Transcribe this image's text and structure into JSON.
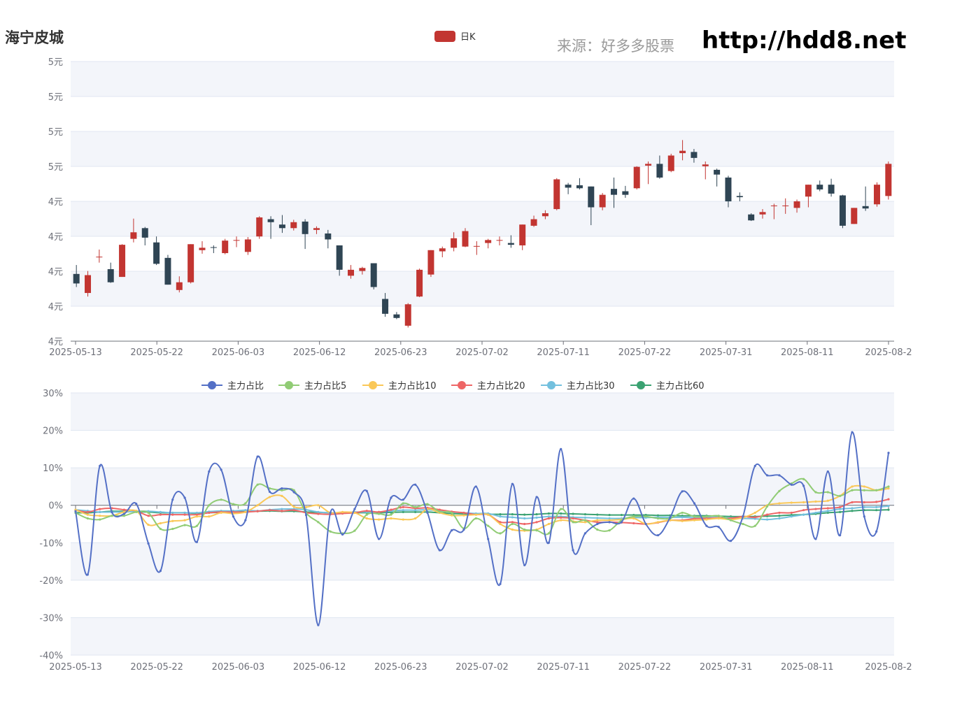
{
  "title": "海宁皮城",
  "source_label": "来源：好多多股票",
  "site_url": "http://hdd8.net",
  "colors": {
    "up": "#c23531",
    "down": "#2f4554",
    "grid_band": "#f3f5fa",
    "series": [
      "#5470c6",
      "#91cc75",
      "#fac858",
      "#ee6666",
      "#73c0de",
      "#3ba272"
    ]
  },
  "chart_data": [
    {
      "type": "candlestick",
      "legend": [
        "日K"
      ],
      "y_tick_labels": [
        "4元",
        "4元",
        "4元",
        "4元",
        "4元",
        "5元",
        "5元",
        "5元",
        "5元"
      ],
      "x_tick_labels": [
        "2025-05-13",
        "2025-05-22",
        "2025-06-03",
        "2025-06-12",
        "2025-06-23",
        "2025-07-02",
        "2025-07-11",
        "2025-07-22",
        "2025-07-31",
        "2025-08-11",
        "2025-08-2"
      ],
      "ylim": [
        4.1,
        4.57
      ],
      "grid": true,
      "candles": [
        [
          4.213,
          4.197,
          4.228,
          4.191
        ],
        [
          4.181,
          4.211,
          4.218,
          4.175
        ],
        [
          4.241,
          4.242,
          4.254,
          4.232
        ],
        [
          4.221,
          4.199,
          4.232,
          4.198
        ],
        [
          4.208,
          4.262,
          4.263,
          4.208
        ],
        [
          4.272,
          4.283,
          4.306,
          4.266
        ],
        [
          4.29,
          4.274,
          4.292,
          4.261
        ],
        [
          4.266,
          4.23,
          4.276,
          4.228
        ],
        [
          4.24,
          4.195,
          4.245,
          4.195
        ],
        [
          4.186,
          4.199,
          4.209,
          4.182
        ],
        [
          4.199,
          4.263,
          4.263,
          4.197
        ],
        [
          4.253,
          4.257,
          4.268,
          4.247
        ],
        [
          4.258,
          4.257,
          4.261,
          4.248
        ],
        [
          4.248,
          4.269,
          4.272,
          4.246
        ],
        [
          4.27,
          4.27,
          4.276,
          4.258
        ],
        [
          4.25,
          4.271,
          4.275,
          4.245
        ],
        [
          4.276,
          4.308,
          4.31,
          4.272
        ],
        [
          4.305,
          4.3,
          4.31,
          4.272
        ],
        [
          4.296,
          4.29,
          4.312,
          4.282
        ],
        [
          4.29,
          4.3,
          4.304,
          4.286
        ],
        [
          4.301,
          4.28,
          4.305,
          4.255
        ],
        [
          4.287,
          4.29,
          4.293,
          4.28
        ],
        [
          4.281,
          4.271,
          4.287,
          4.256
        ],
        [
          4.261,
          4.22,
          4.261,
          4.21
        ],
        [
          4.21,
          4.22,
          4.228,
          4.205
        ],
        [
          4.218,
          4.223,
          4.225,
          4.212
        ],
        [
          4.231,
          4.191,
          4.231,
          4.187
        ],
        [
          4.171,
          4.146,
          4.181,
          4.141
        ],
        [
          4.145,
          4.139,
          4.149,
          4.137
        ],
        [
          4.126,
          4.162,
          4.164,
          4.123
        ],
        [
          4.175,
          4.22,
          4.222,
          4.174
        ],
        [
          4.212,
          4.253,
          4.253,
          4.208
        ],
        [
          4.251,
          4.256,
          4.259,
          4.241
        ],
        [
          4.257,
          4.273,
          4.283,
          4.251
        ],
        [
          4.259,
          4.285,
          4.29,
          4.258
        ],
        [
          4.26,
          4.26,
          4.268,
          4.245
        ],
        [
          4.265,
          4.27,
          4.272,
          4.256
        ],
        [
          4.269,
          4.27,
          4.276,
          4.261
        ],
        [
          4.265,
          4.262,
          4.278,
          4.257
        ],
        [
          4.261,
          4.296,
          4.296,
          4.253
        ],
        [
          4.294,
          4.305,
          4.311,
          4.292
        ],
        [
          4.31,
          4.315,
          4.32,
          4.305
        ],
        [
          4.322,
          4.372,
          4.374,
          4.32
        ],
        [
          4.363,
          4.358,
          4.366,
          4.347
        ],
        [
          4.362,
          4.357,
          4.374,
          4.355
        ],
        [
          4.36,
          4.325,
          4.36,
          4.295
        ],
        [
          4.325,
          4.346,
          4.349,
          4.32
        ],
        [
          4.356,
          4.346,
          4.375,
          4.324
        ],
        [
          4.352,
          4.346,
          4.361,
          4.341
        ],
        [
          4.357,
          4.393,
          4.394,
          4.355
        ],
        [
          4.395,
          4.398,
          4.402,
          4.364
        ],
        [
          4.398,
          4.375,
          4.412,
          4.373
        ],
        [
          4.386,
          4.412,
          4.415,
          4.384
        ],
        [
          4.416,
          4.42,
          4.438,
          4.404
        ],
        [
          4.418,
          4.408,
          4.423,
          4.4
        ],
        [
          4.394,
          4.397,
          4.402,
          4.372
        ],
        [
          4.388,
          4.38,
          4.39,
          4.36
        ],
        [
          4.375,
          4.335,
          4.378,
          4.325
        ],
        [
          4.344,
          4.342,
          4.35,
          4.335
        ],
        [
          4.313,
          4.303,
          4.315,
          4.302
        ],
        [
          4.313,
          4.317,
          4.322,
          4.306
        ],
        [
          4.327,
          4.328,
          4.331,
          4.305
        ],
        [
          4.328,
          4.328,
          4.34,
          4.314
        ],
        [
          4.324,
          4.335,
          4.338,
          4.316
        ],
        [
          4.343,
          4.363,
          4.363,
          4.325
        ],
        [
          4.363,
          4.355,
          4.37,
          4.352
        ],
        [
          4.363,
          4.348,
          4.373,
          4.343
        ],
        [
          4.345,
          4.294,
          4.346,
          4.29
        ],
        [
          4.297,
          4.324,
          4.324,
          4.297
        ],
        [
          4.327,
          4.323,
          4.36,
          4.319
        ],
        [
          4.33,
          4.363,
          4.367,
          4.326
        ],
        [
          4.344,
          4.398,
          4.402,
          4.338
        ]
      ]
    },
    {
      "type": "line",
      "smooth": true,
      "y_tick_labels": [
        "-40%",
        "-30%",
        "-20%",
        "-10%",
        "0%",
        "10%",
        "20%",
        "30%"
      ],
      "x_tick_labels": [
        "2025-05-13",
        "2025-05-22",
        "2025-06-03",
        "2025-06-12",
        "2025-06-23",
        "2025-07-02",
        "2025-07-11",
        "2025-07-22",
        "2025-07-31",
        "2025-08-11",
        "2025-08-2"
      ],
      "ylim": [
        -40,
        30
      ],
      "grid": true,
      "series": [
        {
          "name": "主力占比",
          "values": [
            -1.6,
            -18.5,
            10.5,
            -1.9,
            -2.3,
            0.4,
            -10.2,
            -17.5,
            1.5,
            2.0,
            -9.8,
            9.0,
            9.5,
            -3.0,
            -4.0,
            13.0,
            3.6,
            4.5,
            3.5,
            -2.6,
            -32.0,
            -2.0,
            -7.8,
            -1.0,
            3.8,
            -9.0,
            2.0,
            1.5,
            5.5,
            -2.0,
            -12.0,
            -6.7,
            -6.5,
            5.0,
            -9.0,
            -21.0,
            5.7,
            -16.0,
            2.2,
            -10.0,
            15.0,
            -12.0,
            -7.5,
            -5.0,
            -4.5,
            -4.5,
            1.8,
            -5.0,
            -8.0,
            -3.3,
            3.7,
            0.5,
            -5.5,
            -5.8,
            -9.5,
            -3.0,
            10.5,
            8.0,
            8.0,
            5.5,
            5.2,
            -9.0,
            9.0,
            -8.0,
            19.5,
            -3.0,
            -7.0,
            14.0
          ]
        },
        {
          "name": "主力占比5",
          "values": [
            -2.0,
            -3.5,
            -3.8,
            -2.8,
            -2.8,
            -1.8,
            -2.0,
            -6.3,
            -6.3,
            -5.3,
            -5.5,
            0.0,
            1.5,
            0.3,
            0.5,
            5.5,
            4.5,
            4.0,
            4.0,
            -2.0,
            -4.5,
            -7.0,
            -7.5,
            -6.8,
            -2.5,
            -2.3,
            -2.5,
            0.5,
            -0.5,
            0.3,
            -1.7,
            -2.0,
            -6.2,
            -3.5,
            -5.5,
            -7.5,
            -5.0,
            -6.5,
            -6.7,
            -7.5,
            -1.0,
            -4.5,
            -4.0,
            -6.5,
            -6.7,
            -4.0,
            -3.0,
            -3.0,
            -3.5,
            -3.5,
            -2.0,
            -3.0,
            -3.0,
            -2.8,
            -4.0,
            -5.0,
            -5.5,
            -0.3,
            3.8,
            5.8,
            7.0,
            3.5,
            3.5,
            2.5,
            4.0,
            4.0,
            4.0,
            5.0
          ]
        },
        {
          "name": "主力占比10",
          "values": [
            -1.2,
            -2.5,
            -2.8,
            -2.8,
            -1.8,
            -1.5,
            -5.2,
            -4.8,
            -4.2,
            -4.0,
            -3.0,
            -3.0,
            -2.0,
            -2.2,
            -1.8,
            0.0,
            2.2,
            2.5,
            -0.4,
            -0.5,
            0.0,
            -2.0,
            -1.8,
            -2.0,
            -3.5,
            -3.8,
            -3.5,
            -3.8,
            -3.5,
            -1.0,
            -2.0,
            -2.7,
            -2.7,
            -2.5,
            -2.5,
            -5.0,
            -6.5,
            -6.8,
            -6.5,
            -5.0,
            -4.0,
            -4.3,
            -4.5,
            -4.0,
            -4.0,
            -3.8,
            -3.5,
            -5.0,
            -4.5,
            -4.0,
            -4.2,
            -4.0,
            -3.8,
            -3.5,
            -3.8,
            -3.3,
            -2.0,
            0.0,
            0.5,
            0.7,
            0.8,
            1.0,
            1.2,
            2.5,
            5.0,
            5.0,
            4.0,
            4.5
          ]
        },
        {
          "name": "主力占比20",
          "values": [
            -1.3,
            -1.8,
            -1.0,
            -0.8,
            -1.2,
            -1.5,
            -2.8,
            -2.5,
            -2.5,
            -2.5,
            -2.5,
            -2.0,
            -1.8,
            -1.8,
            -1.8,
            -1.6,
            -1.3,
            -1.5,
            -1.3,
            -2.0,
            -2.3,
            -2.4,
            -2.2,
            -2.0,
            -1.5,
            -1.8,
            -1.2,
            -0.5,
            -0.8,
            -0.7,
            -1.2,
            -1.7,
            -2.0,
            -2.5,
            -2.5,
            -4.5,
            -4.5,
            -5.0,
            -4.5,
            -3.5,
            -3.3,
            -3.5,
            -4.0,
            -4.5,
            -4.5,
            -4.6,
            -4.8,
            -5.0,
            -4.6,
            -4.0,
            -4.0,
            -3.6,
            -3.5,
            -3.4,
            -3.5,
            -3.0,
            -3.2,
            -2.5,
            -2.0,
            -2.0,
            -1.3,
            -1.0,
            -0.8,
            -0.5,
            0.8,
            0.8,
            0.9,
            1.6
          ]
        },
        {
          "name": "主力占比30",
          "values": [
            -1.2,
            -1.5,
            -1.8,
            -1.8,
            -1.8,
            -1.6,
            -1.6,
            -1.8,
            -2.0,
            -2.0,
            -2.0,
            -1.7,
            -1.5,
            -1.5,
            -1.3,
            -1.5,
            -1.2,
            -1.0,
            -1.0,
            -1.2,
            -1.8,
            -2.0,
            -2.0,
            -1.8,
            -1.8,
            -1.8,
            -1.5,
            -1.3,
            -1.3,
            -1.2,
            -1.5,
            -1.8,
            -2.0,
            -2.2,
            -2.2,
            -3.0,
            -3.2,
            -3.5,
            -3.3,
            -3.0,
            -3.0,
            -3.2,
            -3.3,
            -3.4,
            -3.5,
            -3.5,
            -3.3,
            -3.3,
            -3.2,
            -3.2,
            -3.2,
            -3.3,
            -3.2,
            -3.4,
            -3.4,
            -3.5,
            -3.6,
            -3.8,
            -3.5,
            -3.0,
            -2.5,
            -2.0,
            -1.5,
            -1.0,
            -0.8,
            -0.5,
            -0.5,
            -0.2
          ]
        },
        {
          "name": "主力占比60",
          "values": [
            -2.0,
            -2.0,
            -1.8,
            -1.6,
            -1.6,
            -1.7,
            -1.8,
            -2.0,
            -2.0,
            -2.0,
            -2.2,
            -2.0,
            -1.9,
            -1.8,
            -1.7,
            -1.6,
            -1.5,
            -1.6,
            -1.6,
            -1.8,
            -1.9,
            -2.0,
            -2.0,
            -2.0,
            -2.0,
            -2.0,
            -1.9,
            -1.8,
            -1.8,
            -1.8,
            -2.0,
            -2.2,
            -2.3,
            -2.3,
            -2.4,
            -2.4,
            -2.4,
            -2.5,
            -2.4,
            -2.2,
            -2.2,
            -2.3,
            -2.4,
            -2.5,
            -2.6,
            -2.6,
            -2.6,
            -2.6,
            -2.7,
            -2.7,
            -2.8,
            -2.8,
            -2.8,
            -2.9,
            -3.0,
            -3.0,
            -3.0,
            -2.9,
            -2.8,
            -2.6,
            -2.5,
            -2.3,
            -2.0,
            -1.8,
            -1.5,
            -1.3,
            -1.3,
            -1.2
          ]
        }
      ]
    }
  ]
}
